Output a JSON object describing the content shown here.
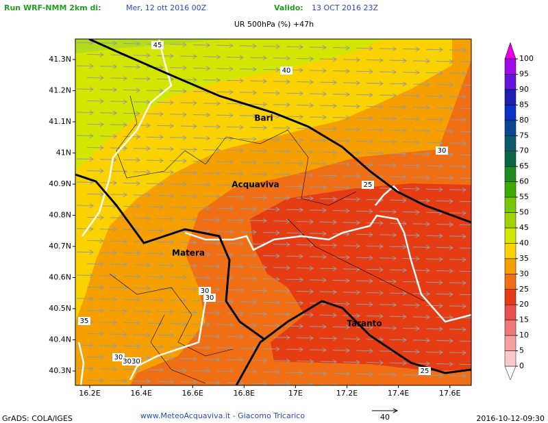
{
  "header": {
    "run_label": "Run WRF-NMM 2km di:",
    "run_date": "Mer, 12 ott 2016 00Z",
    "valid_label": "Valido:",
    "valid_date": "13 OCT 2016 23Z"
  },
  "title": "UR 500hPa (%) +47h",
  "map": {
    "lat_labels": [
      "41.3N",
      "41.2N",
      "41.1N",
      "41N",
      "40.9N",
      "40.8N",
      "40.7N",
      "40.6N",
      "40.5N",
      "40.4N",
      "40.3N"
    ],
    "lon_labels": [
      "16.2E",
      "16.4E",
      "16.6E",
      "16.8E",
      "17E",
      "17.2E",
      "17.4E",
      "17.6E"
    ],
    "places": [
      "Bari",
      "Acquaviva",
      "Matera",
      "Taranto"
    ],
    "contour_labels": [
      "45",
      "40",
      "30",
      "25",
      "30",
      "30",
      "35",
      "30",
      "3030",
      "25"
    ]
  },
  "colorbar": {
    "levels": [
      0,
      5,
      10,
      15,
      20,
      25,
      30,
      35,
      40,
      45,
      50,
      55,
      60,
      65,
      70,
      75,
      80,
      85,
      90,
      95,
      100
    ],
    "colors": [
      "#ffffff",
      "#fac8c8",
      "#f5a0a0",
      "#f07878",
      "#eb5050",
      "#e63c14",
      "#f06e14",
      "#f5a000",
      "#fad200",
      "#d2e600",
      "#a0d200",
      "#78c800",
      "#3caa00",
      "#1e8c1e",
      "#0a6446",
      "#0a5a6e",
      "#0a4696",
      "#0a32c8",
      "#1e1eb4",
      "#6414dc",
      "#a00ae6",
      "#e600e6"
    ]
  },
  "footer": {
    "software": "GrADS: COLA/IGES",
    "credit": "www.MeteoAcquaviva.it - Giacomo Tricarico",
    "vector_scale": "40",
    "timestamp": "2016-10-12-09:30"
  }
}
